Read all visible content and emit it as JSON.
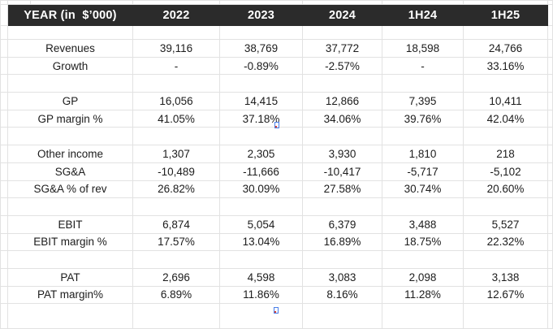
{
  "table": {
    "header": {
      "label_col": "YEAR (in  $’000)",
      "years": [
        "2022",
        "2023",
        "2024",
        "1H24",
        "1H25"
      ]
    },
    "rows": [
      {
        "type": "spacer",
        "label": "",
        "values": [
          "",
          "",
          "",
          "",
          ""
        ]
      },
      {
        "type": "data",
        "label": "Revenues",
        "values": [
          "39,116",
          "38,769",
          "37,772",
          "18,598",
          "24,766"
        ]
      },
      {
        "type": "data",
        "label": "Growth",
        "values": [
          "-",
          "-0.89%",
          "-2.57%",
          "-",
          "33.16%"
        ]
      },
      {
        "type": "spacer",
        "label": "",
        "values": [
          "",
          "",
          "",
          "",
          ""
        ]
      },
      {
        "type": "data",
        "label": "GP",
        "values": [
          "16,056",
          "14,415",
          "12,866",
          "7,395",
          "10,411"
        ]
      },
      {
        "type": "data",
        "label": "GP margin %",
        "values": [
          "41.05%",
          "37.18%",
          "34.06%",
          "39.76%",
          "42.04%"
        ]
      },
      {
        "type": "spacer",
        "label": "",
        "values": [
          "",
          "",
          "",
          "",
          ""
        ]
      },
      {
        "type": "data",
        "label": "Other income",
        "values": [
          "1,307",
          "2,305",
          "3,930",
          "1,810",
          "218"
        ]
      },
      {
        "type": "data",
        "label": "SG&A",
        "values": [
          "-10,489",
          "-11,666",
          "-10,417",
          "-5,717",
          "-5,102"
        ]
      },
      {
        "type": "data",
        "label": "SG&A % of rev",
        "values": [
          "26.82%",
          "30.09%",
          "27.58%",
          "30.74%",
          "20.60%"
        ]
      },
      {
        "type": "spacer",
        "label": "",
        "values": [
          "",
          "",
          "",
          "",
          ""
        ]
      },
      {
        "type": "data",
        "label": "EBIT",
        "values": [
          "6,874",
          "5,054",
          "6,379",
          "3,488",
          "5,527"
        ]
      },
      {
        "type": "data",
        "label": "EBIT margin %",
        "values": [
          "17.57%",
          "13.04%",
          "16.89%",
          "18.75%",
          "22.32%"
        ]
      },
      {
        "type": "spacer",
        "label": "",
        "values": [
          "",
          "",
          "",
          "",
          ""
        ]
      },
      {
        "type": "data",
        "label": "PAT",
        "values": [
          "2,696",
          "4,598",
          "3,083",
          "2,098",
          "3,138"
        ]
      },
      {
        "type": "data",
        "label": "PAT margin%",
        "values": [
          "6.89%",
          "11.86%",
          "8.16%",
          "11.28%",
          "12.67%"
        ]
      },
      {
        "type": "spacer",
        "label": "",
        "values": [
          "",
          "",
          "",
          "",
          ""
        ]
      }
    ],
    "colors": {
      "header_bg": "#2b2b2b",
      "header_text": "#ffffff",
      "grid": "#e2e2e2",
      "cell_text": "#1c1c1c",
      "bg": "#ffffff"
    }
  }
}
